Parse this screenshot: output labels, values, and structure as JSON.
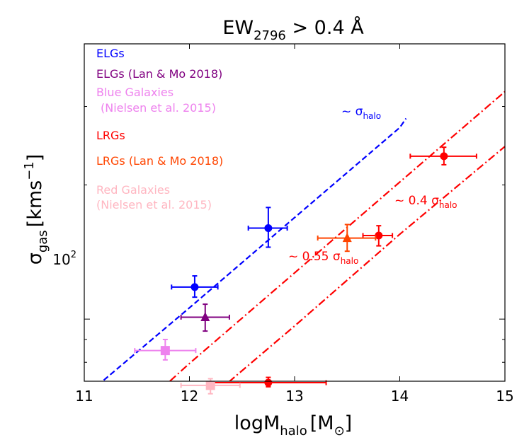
{
  "chart_data": {
    "type": "scatter",
    "title": "EW₂₇₉₆ > 0.4 Å",
    "title_main": "EW",
    "title_sub": "2796",
    "title_rest": " > 0.4 Å",
    "xlabel_main": "logM",
    "xlabel_sub": "halo",
    "xlabel_unit": "[M",
    "xlabel_unit_sub": "⊙",
    "xlabel_unit_close": "]",
    "ylabel_main": "σ",
    "ylabel_sub": "gas",
    "ylabel_unit": "[kms",
    "ylabel_sup": "−1",
    "ylabel_close": "]",
    "xlim": [
      11,
      15
    ],
    "ylim_log10": [
      1.8606,
      2.6176
    ],
    "xticks": [
      11,
      12,
      13,
      14,
      15
    ],
    "xtick_labels": [
      "11",
      "12",
      "13",
      "14",
      "15"
    ],
    "ytick_major_label": "10",
    "ytick_major_sup": "2",
    "yminor_ticks": [
      80,
      90,
      200,
      300
    ],
    "series": [
      {
        "name": "ELGs",
        "color": "#0000ff",
        "marker": "circle",
        "points": [
          {
            "x": 12.05,
            "y": 118,
            "xlo": 11.83,
            "xhi": 12.27,
            "ylo": 112,
            "yhi": 125
          },
          {
            "x": 12.75,
            "y": 160,
            "xlo": 12.56,
            "xhi": 12.93,
            "ylo": 145,
            "yhi": 178
          }
        ]
      },
      {
        "name": "ELGs (Lan & Mo 2018)",
        "color": "#800080",
        "marker": "triangle",
        "points": [
          {
            "x": 12.15,
            "y": 101,
            "xlo": 11.92,
            "xhi": 12.38,
            "ylo": 94,
            "yhi": 108
          }
        ]
      },
      {
        "name": "Blue Galaxies (Nielsen et al. 2015)",
        "color": "#ee82ee",
        "marker": "square",
        "points": [
          {
            "x": 11.77,
            "y": 85,
            "xlo": 11.48,
            "xhi": 12.06,
            "ylo": 81,
            "yhi": 90
          }
        ]
      },
      {
        "name": "LRGs",
        "color": "#ff0000",
        "marker": "circle",
        "points": [
          {
            "x": 14.42,
            "y": 232,
            "xlo": 14.1,
            "xhi": 14.73,
            "ylo": 222,
            "yhi": 243
          },
          {
            "x": 13.8,
            "y": 154,
            "xlo": 13.65,
            "xhi": 13.93,
            "ylo": 146,
            "yhi": 162
          },
          {
            "x": 12.75,
            "y": 72,
            "xlo": 12.2,
            "xhi": 13.3,
            "ylo": 70.5,
            "yhi": 74
          }
        ]
      },
      {
        "name": "LRGs (Lan & Mo 2018)",
        "color": "#ff4500",
        "marker": "triangle",
        "points": [
          {
            "x": 13.5,
            "y": 152,
            "xlo": 13.22,
            "xhi": 13.77,
            "ylo": 142,
            "yhi": 163
          }
        ]
      },
      {
        "name": "Red Galaxies (Nielsen et al. 2015)",
        "color": "#ffb6c1",
        "marker": "square",
        "points": [
          {
            "x": 12.2,
            "y": 71,
            "xlo": 11.92,
            "xhi": 12.48,
            "ylo": 68,
            "yhi": 73.5
          }
        ]
      }
    ],
    "lines": [
      {
        "label_prefix": "~ σ",
        "label_sub": "halo",
        "color": "#0000ff",
        "dash": "dashed",
        "points": [
          [
            11.0,
            67.0
          ],
          [
            12.0,
            106.0
          ],
          [
            13.0,
            169.0
          ],
          [
            14.0,
            269.0
          ],
          [
            14.06,
            282
          ]
        ]
      },
      {
        "label_prefix": "~ 0.55 σ",
        "label_sub": "halo",
        "color": "#ff0000",
        "dash": "dashdot",
        "points": [
          [
            11.5,
            62.2
          ],
          [
            12.0,
            79.5
          ],
          [
            13.0,
            127.0
          ],
          [
            14.0,
            203.0
          ],
          [
            15.0,
            324.0
          ]
        ]
      },
      {
        "label_prefix": "~ 0.4 σ",
        "label_sub": "halo",
        "color": "#ff0000",
        "dash": "dashdot",
        "points": [
          [
            12.05,
            62.2
          ],
          [
            13.0,
            96.5
          ],
          [
            14.0,
            155.0
          ],
          [
            15.0,
            244.0
          ]
        ]
      }
    ],
    "legend": {
      "placement": "top-left",
      "entries": [
        {
          "text": "ELGs",
          "color": "#0000ff"
        },
        {
          "text": "ELGs (Lan & Mo 2018)",
          "color": "#800080"
        },
        {
          "text": "Blue Galaxies",
          "color": "#ee82ee"
        },
        {
          "text": "(Nielsen et al. 2015)",
          "color": "#ee82ee"
        },
        {
          "text": "LRGs",
          "color": "#ff0000"
        },
        {
          "text": "LRGs (Lan & Mo 2018)",
          "color": "#ff4500"
        },
        {
          "text": "Red Galaxies",
          "color": "#ffb6c1"
        },
        {
          "text": "(Nielsen et al. 2015)",
          "color": "#ffb6c1"
        }
      ]
    }
  }
}
